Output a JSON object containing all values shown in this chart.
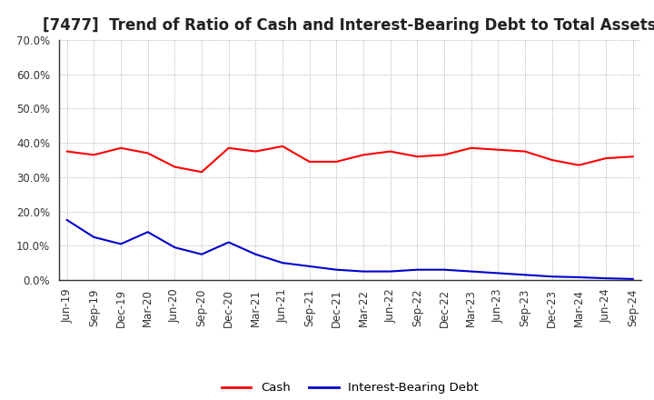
{
  "title": "[7477]  Trend of Ratio of Cash and Interest-Bearing Debt to Total Assets",
  "x_labels": [
    "Jun-19",
    "Sep-19",
    "Dec-19",
    "Mar-20",
    "Jun-20",
    "Sep-20",
    "Dec-20",
    "Mar-21",
    "Jun-21",
    "Sep-21",
    "Dec-21",
    "Mar-22",
    "Jun-22",
    "Sep-22",
    "Dec-22",
    "Mar-23",
    "Jun-23",
    "Sep-23",
    "Dec-23",
    "Mar-24",
    "Jun-24",
    "Sep-24"
  ],
  "cash": [
    37.5,
    36.5,
    38.5,
    37.0,
    33.0,
    31.5,
    38.5,
    37.5,
    39.0,
    34.5,
    34.5,
    36.5,
    37.5,
    36.0,
    36.5,
    38.5,
    38.0,
    37.5,
    35.0,
    33.5,
    35.5,
    36.0
  ],
  "interest_bearing_debt": [
    17.5,
    12.5,
    10.5,
    14.0,
    9.5,
    7.5,
    11.0,
    7.5,
    5.0,
    4.0,
    3.0,
    2.5,
    2.5,
    3.0,
    3.0,
    2.5,
    2.0,
    1.5,
    1.0,
    0.8,
    0.5,
    0.3
  ],
  "cash_color": "#ff0000",
  "debt_color": "#0000cc",
  "background_color": "#ffffff",
  "plot_bg_color": "#ffffff",
  "grid_color": "#999999",
  "ylim": [
    0.0,
    70.0
  ],
  "yticks": [
    0.0,
    10.0,
    20.0,
    30.0,
    40.0,
    50.0,
    60.0,
    70.0
  ],
  "legend_cash": "Cash",
  "legend_debt": "Interest-Bearing Debt",
  "title_fontsize": 12,
  "axis_fontsize": 8.5,
  "legend_fontsize": 9.5,
  "line_width": 1.5
}
